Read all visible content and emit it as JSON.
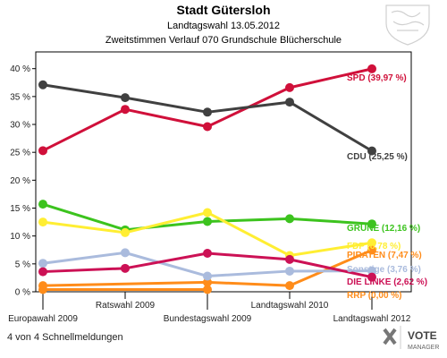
{
  "header": {
    "title": "Stadt Gütersloh",
    "subtitle": "Landtagswahl 13.05.2012",
    "subtitle2": "Zweitstimmen Verlauf 070 Grundschule Blücherschule"
  },
  "footer": {
    "status": "4 von 4 Schnellmeldungen",
    "brand_top": "VOTE",
    "brand_bottom": "MANAGER"
  },
  "chart_data": {
    "type": "line",
    "title": "Stadt Gütersloh",
    "subtitle": "Landtagswahl 13.05.2012 — Zweitstimmen Verlauf 070 Grundschule Blücherschule",
    "categories": [
      "Europawahl 2009",
      "Ratswahl 2009",
      "Bundestagswahl 2009",
      "Landtagswahl 2010",
      "Landtagswahl 2012"
    ],
    "ylim": [
      0,
      43
    ],
    "yticks": [
      {
        "value": 0,
        "label": "0 %"
      },
      {
        "value": 5,
        "label": "5 %"
      },
      {
        "value": 10,
        "label": "10 %"
      },
      {
        "value": 15,
        "label": "15 %"
      },
      {
        "value": 20,
        "label": "20 %"
      },
      {
        "value": 25,
        "label": "25 %"
      },
      {
        "value": 30,
        "label": "30 %"
      },
      {
        "value": 35,
        "label": "35 %"
      },
      {
        "value": 40,
        "label": "40 %"
      }
    ],
    "grid": false,
    "series": [
      {
        "name": "SPD",
        "label": "SPD (39,97 %)",
        "color": "#d0103a",
        "values": [
          25.3,
          32.7,
          29.6,
          36.6,
          39.97
        ]
      },
      {
        "name": "CDU",
        "label": "CDU (25,25 %)",
        "color": "#404040",
        "values": [
          37.1,
          34.8,
          32.2,
          34.0,
          25.25
        ]
      },
      {
        "name": "GRÜNE",
        "label": "GRÜNE (12,16 %)",
        "color": "#3cc31e",
        "values": [
          15.7,
          11.1,
          12.6,
          13.1,
          12.16
        ]
      },
      {
        "name": "FDP",
        "label": "FDP (8,78 %)",
        "color": "#ffee33",
        "values": [
          12.5,
          10.6,
          14.2,
          6.5,
          8.78
        ]
      },
      {
        "name": "PIRATEN",
        "label": "PIRATEN (7,47 %)",
        "color": "#ff8c1a",
        "values": [
          1.1,
          null,
          1.7,
          1.1,
          7.47
        ]
      },
      {
        "name": "Sonstige",
        "label": "Sonstige (3,76 %)",
        "color": "#aabbdd",
        "values": [
          5.1,
          7.0,
          2.8,
          3.7,
          3.76
        ]
      },
      {
        "name": "DIE LINKE",
        "label": "DIE LINKE (2,62 %)",
        "color": "#cc1155",
        "values": [
          3.6,
          4.2,
          6.9,
          5.8,
          2.62
        ]
      },
      {
        "name": "RRP",
        "label": "RRP (0,00 %)",
        "color": "#ff8c1a",
        "values": [
          0.4,
          null,
          0.4,
          null,
          null
        ]
      }
    ]
  }
}
